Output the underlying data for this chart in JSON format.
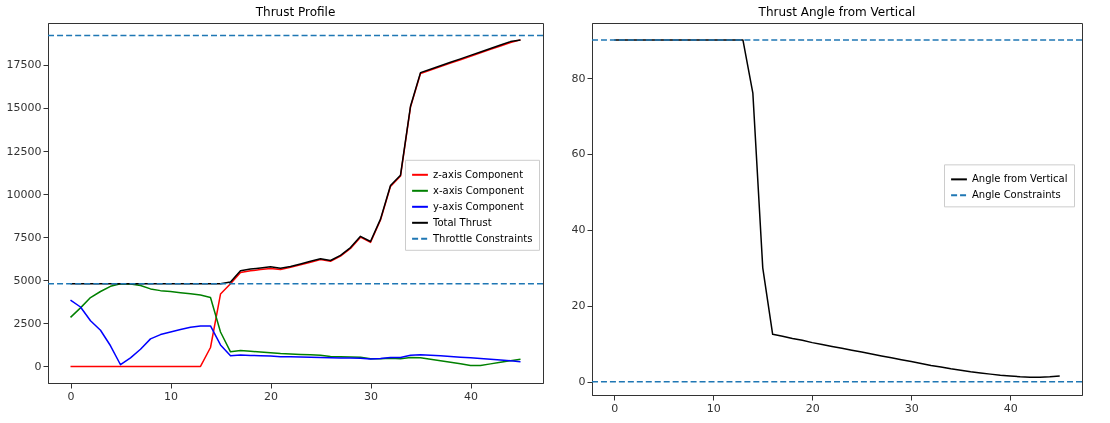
{
  "chart_data": [
    {
      "type": "line",
      "title": "Thrust Profile",
      "x": [
        0,
        1,
        2,
        3,
        4,
        5,
        6,
        7,
        8,
        9,
        10,
        11,
        12,
        13,
        14,
        15,
        16,
        17,
        18,
        19,
        20,
        21,
        22,
        23,
        24,
        25,
        26,
        27,
        28,
        29,
        30,
        31,
        32,
        33,
        34,
        35,
        36,
        37,
        38,
        39,
        40,
        41,
        42,
        43,
        44,
        45
      ],
      "xlim": [
        -2.25,
        47.25
      ],
      "xticks": [
        0,
        10,
        20,
        30,
        40
      ],
      "ylim": [
        -960,
        19930
      ],
      "yticks": [
        0,
        2500,
        5000,
        7500,
        10000,
        12500,
        15000,
        17500
      ],
      "grid": false,
      "legend": "right",
      "line_style": "solid",
      "series": [
        {
          "name": "z-axis Component",
          "color": "#ff0000",
          "values": [
            0,
            0,
            0,
            0,
            0,
            0,
            0,
            0,
            0,
            0,
            0,
            0,
            0,
            0,
            1100,
            4200,
            4800,
            5450,
            5550,
            5620,
            5680,
            5620,
            5750,
            5900,
            6050,
            6200,
            6100,
            6400,
            6850,
            7500,
            7200,
            8500,
            10450,
            11050,
            15050,
            17000,
            17200,
            17400,
            17600,
            17800,
            18000,
            18200,
            18400,
            18600,
            18800,
            18950
          ]
        },
        {
          "name": "x-axis Component",
          "color": "#008000",
          "values": [
            2850,
            3400,
            4000,
            4350,
            4650,
            4800,
            4780,
            4700,
            4500,
            4400,
            4350,
            4280,
            4220,
            4150,
            4000,
            2000,
            850,
            920,
            880,
            840,
            800,
            750,
            720,
            700,
            680,
            650,
            580,
            560,
            550,
            540,
            450,
            450,
            480,
            450,
            520,
            500,
            420,
            330,
            250,
            160,
            60,
            50,
            150,
            250,
            330,
            420
          ]
        },
        {
          "name": "y-axis Component",
          "color": "#0000ff",
          "values": [
            3850,
            3450,
            2650,
            2100,
            1200,
            100,
            500,
            1000,
            1600,
            1850,
            2000,
            2150,
            2280,
            2350,
            2350,
            1250,
            620,
            660,
            640,
            620,
            600,
            570,
            560,
            550,
            540,
            520,
            500,
            490,
            490,
            480,
            430,
            460,
            520,
            520,
            650,
            680,
            650,
            620,
            580,
            540,
            500,
            460,
            420,
            380,
            330,
            280
          ]
        },
        {
          "name": "Total Thrust",
          "color": "#000000",
          "values": [
            4800,
            4800,
            4800,
            4800,
            4800,
            4800,
            4800,
            4800,
            4800,
            4800,
            4800,
            4800,
            4800,
            4800,
            4800,
            4800,
            4900,
            5550,
            5650,
            5720,
            5780,
            5700,
            5800,
            5950,
            6100,
            6250,
            6150,
            6450,
            6900,
            7550,
            7250,
            8550,
            10500,
            11100,
            15100,
            17050,
            17250,
            17450,
            17650,
            17850,
            18050,
            18250,
            18450,
            18650,
            18850,
            18950
          ]
        }
      ],
      "ref_lines": [
        {
          "axis": "y",
          "value": 4800,
          "label": "Throttle Constraints",
          "color": "#1f77b4",
          "line_style": "dashed"
        },
        {
          "axis": "y",
          "value": 19200,
          "color": "#1f77b4",
          "line_style": "dashed"
        }
      ]
    },
    {
      "type": "line",
      "title": "Thrust Angle from Vertical",
      "x": [
        0,
        1,
        2,
        3,
        4,
        5,
        6,
        7,
        8,
        9,
        10,
        11,
        12,
        13,
        14,
        15,
        16,
        17,
        18,
        19,
        20,
        21,
        22,
        23,
        24,
        25,
        26,
        27,
        28,
        29,
        30,
        31,
        32,
        33,
        34,
        35,
        36,
        37,
        38,
        39,
        40,
        41,
        42,
        43,
        44,
        45
      ],
      "xlim": [
        -2.25,
        47.25
      ],
      "xticks": [
        0,
        10,
        20,
        30,
        40
      ],
      "ylim": [
        -3.5,
        94.5
      ],
      "yticks": [
        0,
        20,
        40,
        60,
        80
      ],
      "grid": false,
      "legend": "right",
      "line_style": "solid",
      "series": [
        {
          "name": "Angle from Vertical",
          "color": "#000000",
          "values": [
            90,
            90,
            90,
            90,
            90,
            90,
            90,
            90,
            90,
            90,
            90,
            90,
            90,
            90,
            76,
            30,
            12.5,
            12.0,
            11.4,
            10.9,
            10.3,
            9.8,
            9.3,
            8.8,
            8.3,
            7.8,
            7.3,
            6.8,
            6.3,
            5.8,
            5.3,
            4.8,
            4.3,
            3.9,
            3.4,
            3.0,
            2.6,
            2.3,
            2.0,
            1.7,
            1.5,
            1.3,
            1.2,
            1.2,
            1.3,
            1.5
          ]
        }
      ],
      "ref_lines": [
        {
          "axis": "y",
          "value": 0,
          "label": "Angle Constraints",
          "color": "#1f77b4",
          "line_style": "dashed"
        },
        {
          "axis": "y",
          "value": 90,
          "color": "#1f77b4",
          "line_style": "dashed"
        }
      ]
    }
  ]
}
